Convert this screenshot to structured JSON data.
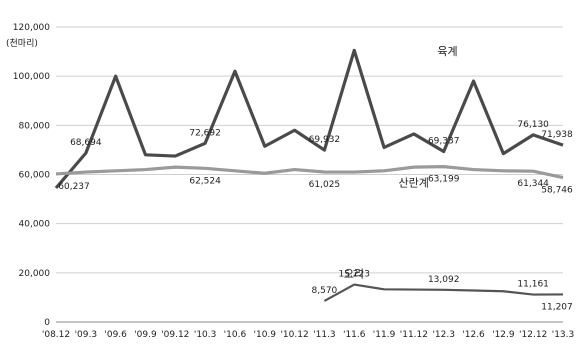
{
  "chart_data": {
    "type": "line",
    "unit_label": "(천마리)",
    "categories": [
      "'08.12",
      "'09.3",
      "'09.6",
      "'09.9",
      "'09.12",
      "'10.3",
      "'10.6",
      "'10.9",
      "'10.12",
      "'11.3",
      "'11.6",
      "'11.9",
      "'11.12",
      "'12.3",
      "'12.6",
      "'12.9",
      "'12.12",
      "'13.3"
    ],
    "y_ticks": [
      0,
      20000,
      40000,
      60000,
      80000,
      100000,
      120000
    ],
    "y_tick_labels": [
      "0",
      "20,000",
      "40,000",
      "60,000",
      "80,000",
      "100,000",
      "120,000"
    ],
    "ylim": [
      0,
      120000
    ],
    "grid": true,
    "series": [
      {
        "name": "육계",
        "color": "#4a4a4a",
        "values": [
          54500,
          68694,
          100000,
          68000,
          67500,
          72692,
          102000,
          71500,
          78000,
          69932,
          110500,
          71000,
          76500,
          69337,
          98000,
          68500,
          76130,
          71938
        ]
      },
      {
        "name": "산란계",
        "color": "#9a9a9a",
        "values": [
          60237,
          61000,
          61500,
          62000,
          63000,
          62524,
          61500,
          60500,
          62000,
          61025,
          61000,
          61500,
          63000,
          63199,
          62000,
          61500,
          61344,
          58746
        ]
      },
      {
        "name": "오리",
        "color": "#555555",
        "values": [
          null,
          null,
          null,
          null,
          null,
          null,
          null,
          null,
          null,
          8570,
          15223,
          13300,
          13200,
          13092,
          12800,
          12500,
          11161,
          11207
        ]
      }
    ],
    "data_labels": [
      {
        "series": 0,
        "index": 1,
        "text": "68,694"
      },
      {
        "series": 0,
        "index": 5,
        "text": "72,692"
      },
      {
        "series": 0,
        "index": 9,
        "text": "69,932"
      },
      {
        "series": 0,
        "index": 13,
        "text": "69,337"
      },
      {
        "series": 0,
        "index": 16,
        "text": "76,130"
      },
      {
        "series": 0,
        "index": 17,
        "text": "71,938"
      },
      {
        "series": 1,
        "index": 0,
        "text": "60,237"
      },
      {
        "series": 1,
        "index": 5,
        "text": "62,524"
      },
      {
        "series": 1,
        "index": 9,
        "text": "61,025"
      },
      {
        "series": 1,
        "index": 13,
        "text": "63,199"
      },
      {
        "series": 1,
        "index": 16,
        "text": "61,344"
      },
      {
        "series": 1,
        "index": 17,
        "text": "58,746"
      },
      {
        "series": 2,
        "index": 9,
        "text": "8,570"
      },
      {
        "series": 2,
        "index": 10,
        "text": "15,223"
      },
      {
        "series": 2,
        "index": 13,
        "text": "13,092"
      },
      {
        "series": 2,
        "index": 16,
        "text": "11,161"
      },
      {
        "series": 2,
        "index": 17,
        "text": "11,207"
      }
    ]
  }
}
